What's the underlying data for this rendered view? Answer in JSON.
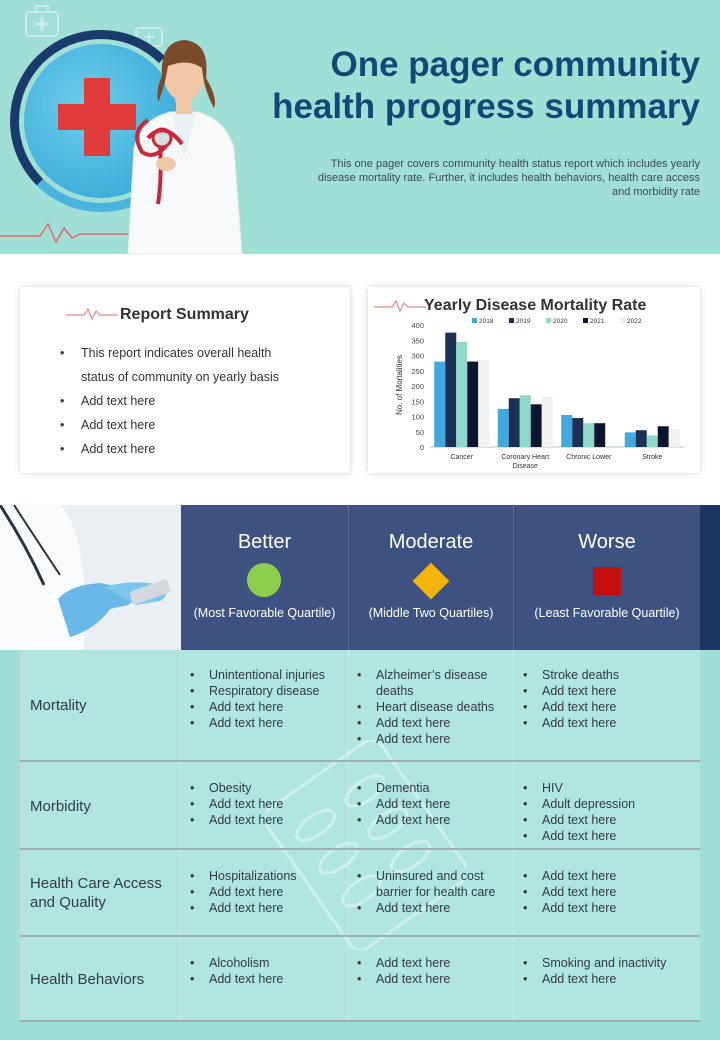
{
  "header": {
    "title_line1": "One pager community",
    "title_line2": "health progress summary",
    "subtitle": "This one pager covers community health status report which includes yearly disease mortality rate. Further, it includes health behaviors, health care access and morbidity rate"
  },
  "report_summary": {
    "title": "Report Summary",
    "items": [
      "This report indicates overall  health",
      "status of community on yearly basis",
      "Add text here",
      "Add text here",
      "Add text here"
    ]
  },
  "chart_data": {
    "type": "bar",
    "title": "Yearly Disease  Mortality Rate",
    "ylabel": "No. of Mortalities",
    "xlabel": "",
    "ylim": [
      0,
      400
    ],
    "yticks": [
      "0",
      "50",
      "100",
      "150",
      "200",
      "250",
      "300",
      "350",
      "400"
    ],
    "categories": [
      "Cancer",
      "Coronary  Heart Disease",
      "Chronic Lower",
      "Stroke"
    ],
    "series": [
      {
        "name": "2018",
        "color": "#3fa9e0",
        "values": [
          280,
          125,
          105,
          48
        ]
      },
      {
        "name": "2019",
        "color": "#1c2f55",
        "values": [
          375,
          160,
          95,
          55
        ]
      },
      {
        "name": "2020",
        "color": "#8fd9cc",
        "values": [
          345,
          170,
          78,
          38
        ]
      },
      {
        "name": "2021",
        "color": "#0b1530",
        "values": [
          280,
          140,
          78,
          68
        ]
      },
      {
        "name": "2022",
        "color": "#f1f2f2",
        "values": [
          285,
          165,
          0,
          58
        ]
      }
    ],
    "legend_position": "top"
  },
  "quartiles": [
    {
      "heading": "Better",
      "sub": "(Most Favorable  Quartile)",
      "symbol": "green-circle",
      "color": "#8ccf4d"
    },
    {
      "heading": "Moderate",
      "sub": "(Middle Two  Quartiles)",
      "symbol": "yellow-diamond",
      "color": "#f5b40a"
    },
    {
      "heading": "Worse",
      "sub": "(Least Favorable  Quartile)",
      "symbol": "red-square",
      "color": "#c20f0f"
    }
  ],
  "rows": [
    {
      "label": "Mortality",
      "better": [
        "Unintentional  injuries",
        "Respiratory  disease",
        "Add text here",
        "Add text here"
      ],
      "moderate": [
        "Alzheimer’s disease deaths",
        "Heart disease deaths",
        "Add text here",
        "Add text here"
      ],
      "worse": [
        "Stroke deaths",
        "Add text here",
        "Add text here",
        "Add text here"
      ]
    },
    {
      "label": "Morbidity",
      "better": [
        "Obesity",
        "Add text here",
        "Add text here"
      ],
      "moderate": [
        "Dementia",
        "Add text here",
        "Add text here"
      ],
      "worse": [
        "HIV",
        "Adult depression",
        "Add text here",
        "Add text here"
      ]
    },
    {
      "label": "Health Care Access and Quality",
      "better": [
        "Hospitalizations",
        "Add text here",
        "Add text here"
      ],
      "moderate": [
        "Uninsured  and cost barrier for health care",
        "Add text here"
      ],
      "worse": [
        "Add text here",
        "Add text here",
        "Add text here"
      ]
    },
    {
      "label": "Health Behaviors",
      "better": [
        "Alcoholism",
        "Add text here"
      ],
      "moderate": [
        "Add text here",
        "Add text here"
      ],
      "worse": [
        "Smoking and inactivity",
        "Add text here"
      ]
    }
  ]
}
